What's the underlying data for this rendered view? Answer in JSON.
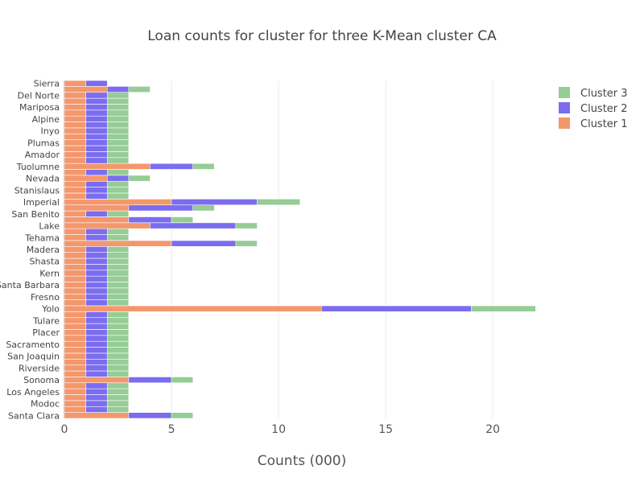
{
  "chart_data": {
    "type": "bar",
    "orientation": "horizontal",
    "barmode": "stack",
    "title": "Loan counts for cluster for three K-Mean cluster CA",
    "xlabel": "Counts (000)",
    "ylabel": "",
    "xlim": [
      0,
      23
    ],
    "xticks": [
      0,
      5,
      10,
      15,
      20
    ],
    "grid": true,
    "legend_position": "top-right",
    "categories": [
      "Santa Clara",
      "Modoc",
      "Los Angeles",
      "Sonoma",
      "Riverside",
      "San Joaquin",
      "Sacramento",
      "Placer",
      "Tulare",
      "Yolo",
      "Fresno",
      "Santa Barbara",
      "Kern",
      "Shasta",
      "Madera",
      "Tehama",
      "Lake",
      "San Benito",
      "Imperial",
      "Stanislaus",
      "Nevada",
      "Tuolumne",
      "Amador",
      "Plumas",
      "Inyo",
      "Alpine",
      "Mariposa",
      "Del Norte",
      "Sierra"
    ],
    "rows": [
      [
        "Santa Clara",
        3,
        2,
        1
      ],
      [
        "",
        1,
        1,
        1
      ],
      [
        "Modoc",
        1,
        1,
        1
      ],
      [
        "",
        1,
        1,
        1
      ],
      [
        "Los Angeles",
        1,
        1,
        1
      ],
      [
        "",
        1,
        1,
        1
      ],
      [
        "Sonoma",
        3,
        2,
        1
      ],
      [
        "",
        1,
        1,
        1
      ],
      [
        "Riverside",
        1,
        1,
        1
      ],
      [
        "",
        1,
        1,
        1
      ],
      [
        "San Joaquin",
        1,
        1,
        1
      ],
      [
        "",
        1,
        1,
        1
      ],
      [
        "Sacramento",
        1,
        1,
        1
      ],
      [
        "",
        1,
        1,
        1
      ],
      [
        "Placer",
        1,
        1,
        1
      ],
      [
        "",
        1,
        1,
        1
      ],
      [
        "Tulare",
        1,
        1,
        1
      ],
      [
        "",
        1,
        1,
        1
      ],
      [
        "Yolo",
        12,
        7,
        3
      ],
      [
        "",
        1,
        1,
        1
      ],
      [
        "Fresno",
        1,
        1,
        1
      ],
      [
        "",
        1,
        1,
        1
      ],
      [
        "Santa Barbara",
        1,
        1,
        1
      ],
      [
        "",
        1,
        1,
        1
      ],
      [
        "Kern",
        1,
        1,
        1
      ],
      [
        "",
        1,
        1,
        1
      ],
      [
        "Shasta",
        1,
        1,
        1
      ],
      [
        "",
        1,
        1,
        1
      ],
      [
        "Madera",
        1,
        1,
        1
      ],
      [
        "",
        5,
        3,
        1
      ],
      [
        "Tehama",
        1,
        1,
        1
      ],
      [
        "",
        1,
        1,
        1
      ],
      [
        "Lake",
        4,
        4,
        1
      ],
      [
        "",
        3,
        2,
        1
      ],
      [
        "San Benito",
        1,
        1,
        1
      ],
      [
        "",
        3,
        3,
        1
      ],
      [
        "Imperial",
        5,
        4,
        2
      ],
      [
        "",
        1,
        1,
        1
      ],
      [
        "Stanislaus",
        1,
        1,
        1
      ],
      [
        "",
        1,
        1,
        1
      ],
      [
        "Nevada",
        2,
        1,
        1
      ],
      [
        "",
        1,
        1,
        1
      ],
      [
        "Tuolumne",
        4,
        2,
        1
      ],
      [
        "",
        1,
        1,
        1
      ],
      [
        "Amador",
        1,
        1,
        1
      ],
      [
        "",
        1,
        1,
        1
      ],
      [
        "Plumas",
        1,
        1,
        1
      ],
      [
        "",
        1,
        1,
        1
      ],
      [
        "Inyo",
        1,
        1,
        1
      ],
      [
        "",
        1,
        1,
        1
      ],
      [
        "Alpine",
        1,
        1,
        1
      ],
      [
        "",
        1,
        1,
        1
      ],
      [
        "Mariposa",
        1,
        1,
        1
      ],
      [
        "",
        1,
        1,
        1
      ],
      [
        "Del Norte",
        1,
        1,
        1
      ],
      [
        "",
        2,
        1,
        1
      ],
      [
        "Sierra",
        1,
        1,
        0
      ]
    ],
    "series": [
      {
        "name": "Cluster 1",
        "color": "#f4976c"
      },
      {
        "name": "Cluster 2",
        "color": "#7b6cf0"
      },
      {
        "name": "Cluster 3",
        "color": "#96cc96"
      }
    ],
    "legend_order": [
      "Cluster 3",
      "Cluster 2",
      "Cluster 1"
    ]
  }
}
